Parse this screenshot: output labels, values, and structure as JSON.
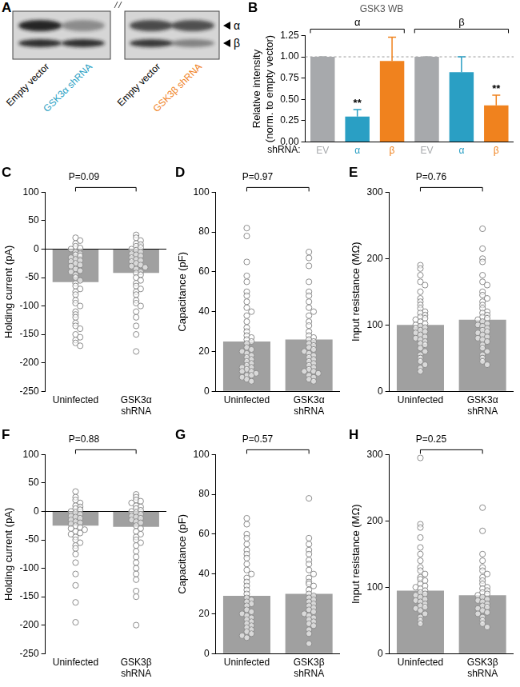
{
  "blot": {
    "panel": "A",
    "lanes": [
      "Empty vector",
      "GSK3α shRNA",
      "Empty vector",
      "GSK3β shRNA"
    ],
    "lane_colors": [
      "#000000",
      "#2a9fc4",
      "#000000",
      "#f0821e"
    ],
    "bands": [
      "α",
      "β"
    ]
  },
  "chart_data": [
    {
      "panel": "B",
      "type": "bar",
      "title": "GSK3 WB",
      "categories": [
        "EV",
        "α",
        "β",
        "EV",
        "α",
        "β"
      ],
      "values": [
        1,
        0.3,
        0.95,
        1,
        0.82,
        0.43
      ],
      "errors": [
        0,
        0.08,
        0.28,
        0,
        0.18,
        0.12
      ],
      "colors": [
        "#a7a9ac",
        "#2a9fc4",
        "#f0821e",
        "#a7a9ac",
        "#2a9fc4",
        "#f0821e"
      ],
      "groups": [
        {
          "label": "α",
          "size": 3
        },
        {
          "label": "β",
          "size": 3
        }
      ],
      "significance": [
        null,
        "**",
        null,
        null,
        null,
        "**"
      ],
      "reference_line": 1,
      "xlabel": "shRNA:",
      "ylabel": [
        "Relative intensity",
        "(norm. to empty vector)"
      ],
      "ylim": [
        0,
        1.25
      ],
      "yticks": [
        {
          "value": 0,
          "label": "0.00"
        },
        {
          "value": 0.25,
          "label": "0.25"
        },
        {
          "value": 0.5,
          "label": "0.50"
        },
        {
          "value": 0.75,
          "label": "0.75"
        },
        {
          "value": 1,
          "label": "1.00"
        },
        {
          "value": 1.25,
          "label": "1.25"
        }
      ],
      "grid": false
    },
    {
      "panel": "C",
      "type": "bar",
      "annotation": "P=0.09",
      "categories": [
        "Uninfected",
        "GSK3α shRNA"
      ],
      "values": [
        -58,
        -42
      ],
      "color": "#a0a0a0",
      "marker": "circle",
      "points": [
        [
          20,
          15,
          10,
          5,
          2,
          0,
          -5,
          -8,
          -10,
          -12,
          -15,
          -18,
          -20,
          -22,
          -25,
          -28,
          -30,
          -35,
          -38,
          -40,
          -45,
          -50,
          -55,
          -60,
          -65,
          -70,
          -75,
          -80,
          -90,
          -95,
          -100,
          -110,
          -115,
          -120,
          -130,
          -135,
          -140,
          -150,
          -155,
          -160,
          -165,
          -170
        ],
        [
          25,
          20,
          15,
          10,
          8,
          5,
          3,
          0,
          -2,
          -5,
          -8,
          -10,
          -12,
          -15,
          -18,
          -20,
          -22,
          -25,
          -28,
          -30,
          -32,
          -35,
          -40,
          -42,
          -45,
          -50,
          -55,
          -60,
          -65,
          -70,
          -75,
          -80,
          -90,
          -95,
          -100,
          -110,
          -120,
          -135,
          -150,
          -180
        ]
      ],
      "ylabel": "Holding current (pA)",
      "ylim": [
        -250,
        100
      ],
      "yticks": [
        -250,
        -200,
        -150,
        -100,
        -50,
        0,
        50,
        100
      ],
      "grid": false
    },
    {
      "panel": "D",
      "type": "bar",
      "annotation": "P=0.97",
      "categories": [
        "Uninfected",
        "GSK3α shRNA"
      ],
      "values": [
        25,
        26
      ],
      "color": "#a0a0a0",
      "marker": "circle",
      "points": [
        [
          82,
          78,
          65,
          58,
          55,
          50,
          48,
          45,
          42,
          40,
          38,
          35,
          32,
          30,
          28,
          27,
          26,
          25,
          24,
          22,
          21,
          20,
          19,
          18,
          17,
          16,
          15,
          14,
          13,
          12,
          12,
          11,
          10,
          10,
          9,
          8,
          8,
          7,
          6,
          5
        ],
        [
          70,
          67,
          63,
          55,
          50,
          48,
          45,
          42,
          40,
          38,
          35,
          33,
          30,
          28,
          27,
          26,
          25,
          24,
          23,
          22,
          21,
          20,
          19,
          18,
          17,
          16,
          15,
          14,
          13,
          12,
          11,
          10,
          10,
          9,
          8,
          7,
          6,
          5
        ]
      ],
      "ylabel": "Capacitance (pF)",
      "ylim": [
        0,
        100
      ],
      "yticks": [
        0,
        20,
        40,
        60,
        80,
        100
      ],
      "grid": false
    },
    {
      "panel": "E",
      "type": "bar",
      "annotation": "P=0.76",
      "categories": [
        "Uninfected",
        "GSK3α shRNA"
      ],
      "values": [
        100,
        108
      ],
      "color": "#a0a0a0",
      "marker": "circle",
      "points": [
        [
          190,
          185,
          175,
          165,
          160,
          150,
          140,
          135,
          130,
          125,
          120,
          118,
          115,
          112,
          110,
          108,
          105,
          102,
          100,
          98,
          96,
          95,
          92,
          90,
          88,
          85,
          82,
          80,
          78,
          75,
          72,
          70,
          65,
          60,
          55,
          50,
          45,
          40,
          35,
          30
        ],
        [
          245,
          215,
          200,
          195,
          175,
          165,
          160,
          150,
          145,
          140,
          135,
          130,
          125,
          120,
          118,
          115,
          112,
          110,
          108,
          105,
          102,
          100,
          98,
          95,
          92,
          90,
          88,
          85,
          82,
          80,
          78,
          75,
          70,
          65,
          60,
          55,
          50,
          45,
          40
        ]
      ],
      "ylabel": "Input resistance (MΩ)",
      "ylim": [
        0,
        300
      ],
      "yticks": [
        0,
        100,
        200,
        300
      ],
      "grid": false
    },
    {
      "panel": "F",
      "type": "bar",
      "annotation": "P=0.88",
      "categories": [
        "Uninfected",
        "GSK3β shRNA"
      ],
      "values": [
        -25,
        -27
      ],
      "color": "#a0a0a0",
      "marker": "circle",
      "points": [
        [
          35,
          25,
          20,
          15,
          10,
          8,
          5,
          3,
          0,
          -2,
          -5,
          -8,
          -10,
          -12,
          -15,
          -18,
          -20,
          -22,
          -25,
          -28,
          -30,
          -32,
          -35,
          -38,
          -40,
          -45,
          -50,
          -55,
          -60,
          -65,
          -75,
          -90,
          -110,
          -130,
          -160,
          -195
        ],
        [
          30,
          25,
          20,
          18,
          15,
          10,
          8,
          5,
          2,
          0,
          -2,
          -5,
          -8,
          -10,
          -12,
          -15,
          -18,
          -20,
          -25,
          -30,
          -35,
          -40,
          -45,
          -50,
          -55,
          -60,
          -70,
          -80,
          -90,
          -100,
          -110,
          -120,
          -140,
          -150,
          -200
        ]
      ],
      "ylabel": "Holding current (pA)",
      "ylim": [
        -250,
        100
      ],
      "yticks": [
        -250,
        -200,
        -150,
        -100,
        -50,
        0,
        50,
        100
      ],
      "grid": false
    },
    {
      "panel": "G",
      "type": "bar",
      "annotation": "P=0.57",
      "categories": [
        "Uninfected",
        "GSK3β shRNA"
      ],
      "values": [
        29,
        30
      ],
      "color": "#a0a0a0",
      "marker": "circle",
      "points": [
        [
          68,
          65,
          60,
          58,
          55,
          52,
          50,
          48,
          45,
          42,
          40,
          38,
          36,
          34,
          32,
          30,
          28,
          27,
          26,
          25,
          24,
          22,
          21,
          20,
          19,
          18,
          17,
          16,
          15,
          14,
          13,
          12,
          11,
          10,
          9,
          8
        ],
        [
          78,
          58,
          55,
          52,
          50,
          47,
          45,
          42,
          40,
          38,
          36,
          35,
          34,
          32,
          30,
          29,
          28,
          27,
          26,
          25,
          24,
          23,
          22,
          21,
          20,
          19,
          18,
          17,
          16,
          15,
          14,
          12,
          10,
          5
        ]
      ],
      "ylabel": "Capacitance (pF)",
      "ylim": [
        0,
        100
      ],
      "yticks": [
        0,
        20,
        40,
        60,
        80,
        100
      ],
      "grid": false
    },
    {
      "panel": "H",
      "type": "bar",
      "annotation": "P=0.25",
      "categories": [
        "Uninfected",
        "GSK3β shRNA"
      ],
      "values": [
        95,
        88
      ],
      "color": "#a0a0a0",
      "marker": "circle",
      "points": [
        [
          295,
          195,
          190,
          175,
          160,
          150,
          140,
          130,
          125,
          120,
          115,
          112,
          110,
          105,
          102,
          100,
          98,
          95,
          92,
          90,
          88,
          85,
          82,
          80,
          78,
          75,
          72,
          70,
          68,
          65,
          60,
          55,
          50,
          45
        ],
        [
          220,
          185,
          150,
          140,
          130,
          125,
          120,
          115,
          110,
          105,
          100,
          98,
          95,
          92,
          90,
          88,
          85,
          82,
          80,
          78,
          75,
          72,
          70,
          68,
          65,
          62,
          60,
          55,
          50,
          45,
          40
        ]
      ],
      "ylabel": "Input resistance (MΩ)",
      "ylim": [
        0,
        300
      ],
      "yticks": [
        0,
        100,
        200,
        300
      ],
      "grid": false
    }
  ]
}
